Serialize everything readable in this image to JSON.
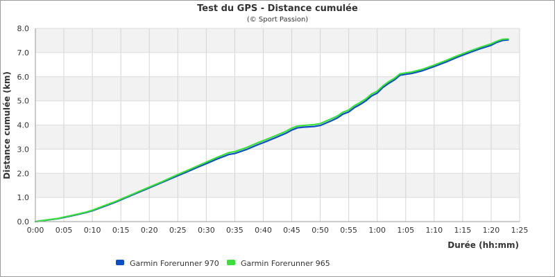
{
  "chart_data": {
    "type": "line",
    "title": "Test du GPS - Distance cumulée",
    "subtitle": "(© Sport Passion)",
    "xlabel": "Durée (hh:mm)",
    "ylabel": "Distance cumulée (km)",
    "x_unit": "minutes",
    "xlim": [
      0,
      85
    ],
    "ylim": [
      0,
      8
    ],
    "x_ticks": [
      0,
      5,
      10,
      15,
      20,
      25,
      30,
      35,
      40,
      45,
      50,
      55,
      60,
      65,
      70,
      75,
      80,
      85
    ],
    "x_tick_labels": [
      "0:00",
      "0:05",
      "0:10",
      "0:15",
      "0:20",
      "0:25",
      "0:30",
      "0:35",
      "0:40",
      "0:45",
      "0:50",
      "0:55",
      "1:00",
      "1:05",
      "1:10",
      "1:15",
      "1:20",
      "1:25"
    ],
    "y_ticks": [
      0,
      1,
      2,
      3,
      4,
      5,
      6,
      7,
      8
    ],
    "y_tick_labels": [
      "0.0",
      "1.0",
      "2.0",
      "3.0",
      "4.0",
      "5.0",
      "6.0",
      "7.0",
      "8.0"
    ],
    "grid": true,
    "band_fill": "#f2f2f2",
    "legend_position": "bottom",
    "series": [
      {
        "name": "Garmin Forerunner 970",
        "color": "#0b4fc4",
        "points": [
          [
            0,
            0
          ],
          [
            2,
            0.06
          ],
          [
            4,
            0.12
          ],
          [
            5,
            0.17
          ],
          [
            7,
            0.27
          ],
          [
            9,
            0.38
          ],
          [
            10,
            0.45
          ],
          [
            12,
            0.62
          ],
          [
            14,
            0.8
          ],
          [
            15,
            0.9
          ],
          [
            17,
            1.1
          ],
          [
            19,
            1.3
          ],
          [
            20,
            1.4
          ],
          [
            22,
            1.6
          ],
          [
            24,
            1.8
          ],
          [
            25,
            1.9
          ],
          [
            27,
            2.1
          ],
          [
            29,
            2.3
          ],
          [
            30,
            2.4
          ],
          [
            32,
            2.6
          ],
          [
            34,
            2.78
          ],
          [
            35,
            2.82
          ],
          [
            37,
            2.98
          ],
          [
            39,
            3.18
          ],
          [
            40,
            3.27
          ],
          [
            42,
            3.46
          ],
          [
            44,
            3.66
          ],
          [
            45,
            3.79
          ],
          [
            46,
            3.88
          ],
          [
            47,
            3.91
          ],
          [
            49,
            3.94
          ],
          [
            50,
            3.98
          ],
          [
            51,
            4.08
          ],
          [
            52,
            4.18
          ],
          [
            53,
            4.29
          ],
          [
            54,
            4.45
          ],
          [
            55,
            4.54
          ],
          [
            56,
            4.72
          ],
          [
            57,
            4.85
          ],
          [
            58,
            5.0
          ],
          [
            59,
            5.2
          ],
          [
            60,
            5.32
          ],
          [
            61,
            5.55
          ],
          [
            62,
            5.72
          ],
          [
            63,
            5.86
          ],
          [
            64,
            6.06
          ],
          [
            65,
            6.1
          ],
          [
            66,
            6.13
          ],
          [
            68,
            6.25
          ],
          [
            70,
            6.42
          ],
          [
            72,
            6.6
          ],
          [
            74,
            6.8
          ],
          [
            76,
            6.98
          ],
          [
            78,
            7.15
          ],
          [
            80,
            7.3
          ],
          [
            81,
            7.42
          ],
          [
            82,
            7.5
          ],
          [
            83,
            7.52
          ]
        ]
      },
      {
        "name": "Garmin Forerunner 965",
        "color": "#3adf3a",
        "points": [
          [
            0,
            0
          ],
          [
            2,
            0.07
          ],
          [
            4,
            0.13
          ],
          [
            5,
            0.19
          ],
          [
            7,
            0.29
          ],
          [
            9,
            0.4
          ],
          [
            10,
            0.47
          ],
          [
            12,
            0.65
          ],
          [
            14,
            0.83
          ],
          [
            15,
            0.93
          ],
          [
            17,
            1.13
          ],
          [
            19,
            1.33
          ],
          [
            20,
            1.43
          ],
          [
            22,
            1.63
          ],
          [
            24,
            1.84
          ],
          [
            25,
            1.95
          ],
          [
            27,
            2.15
          ],
          [
            29,
            2.36
          ],
          [
            30,
            2.46
          ],
          [
            32,
            2.67
          ],
          [
            34,
            2.86
          ],
          [
            35,
            2.9
          ],
          [
            37,
            3.06
          ],
          [
            39,
            3.26
          ],
          [
            40,
            3.35
          ],
          [
            42,
            3.54
          ],
          [
            44,
            3.74
          ],
          [
            45,
            3.87
          ],
          [
            46,
            3.95
          ],
          [
            47,
            3.98
          ],
          [
            49,
            4.02
          ],
          [
            50,
            4.06
          ],
          [
            51,
            4.16
          ],
          [
            52,
            4.26
          ],
          [
            53,
            4.37
          ],
          [
            54,
            4.53
          ],
          [
            55,
            4.62
          ],
          [
            56,
            4.8
          ],
          [
            57,
            4.93
          ],
          [
            58,
            5.08
          ],
          [
            59,
            5.28
          ],
          [
            60,
            5.4
          ],
          [
            61,
            5.62
          ],
          [
            62,
            5.79
          ],
          [
            63,
            5.93
          ],
          [
            64,
            6.12
          ],
          [
            65,
            6.16
          ],
          [
            66,
            6.19
          ],
          [
            68,
            6.31
          ],
          [
            70,
            6.48
          ],
          [
            72,
            6.66
          ],
          [
            74,
            6.86
          ],
          [
            76,
            7.04
          ],
          [
            78,
            7.21
          ],
          [
            80,
            7.36
          ],
          [
            81,
            7.47
          ],
          [
            82,
            7.55
          ],
          [
            83,
            7.56
          ]
        ]
      }
    ]
  }
}
